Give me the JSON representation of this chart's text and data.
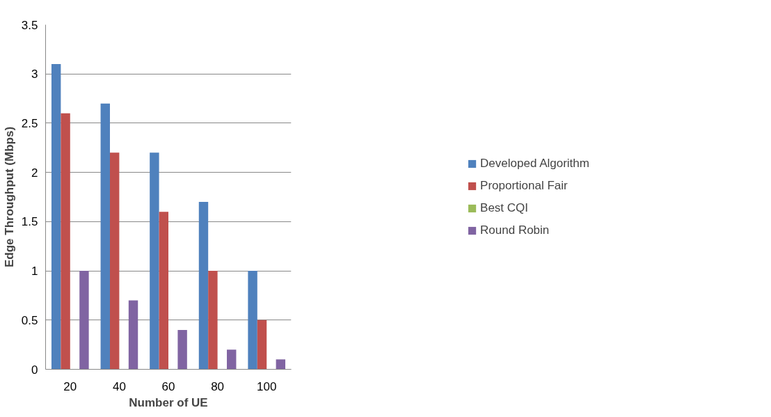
{
  "chart_data": {
    "type": "bar",
    "xlabel": "Number of UE",
    "ylabel": "Edge Throughput (Mbps)",
    "categories": [
      "20",
      "40",
      "60",
      "80",
      "100"
    ],
    "series": [
      {
        "name": "Developed Algorithm",
        "color": "#4f81bd",
        "values": [
          3.1,
          2.7,
          2.2,
          1.7,
          1.0
        ]
      },
      {
        "name": "Proportional Fair",
        "color": "#c0504d",
        "values": [
          2.6,
          2.2,
          1.6,
          1.0,
          0.5
        ]
      },
      {
        "name": "Best CQI",
        "color": "#9bbb59",
        "values": [
          0,
          0,
          0,
          0,
          0
        ]
      },
      {
        "name": "Round Robin",
        "color": "#8064a2",
        "values": [
          1.0,
          0.7,
          0.4,
          0.2,
          0.1
        ]
      }
    ],
    "ylim": [
      0,
      3.5
    ],
    "yticks": [
      0,
      0.5,
      1,
      1.5,
      2,
      2.5,
      3,
      3.5
    ],
    "grid": "y",
    "legend": "right"
  }
}
